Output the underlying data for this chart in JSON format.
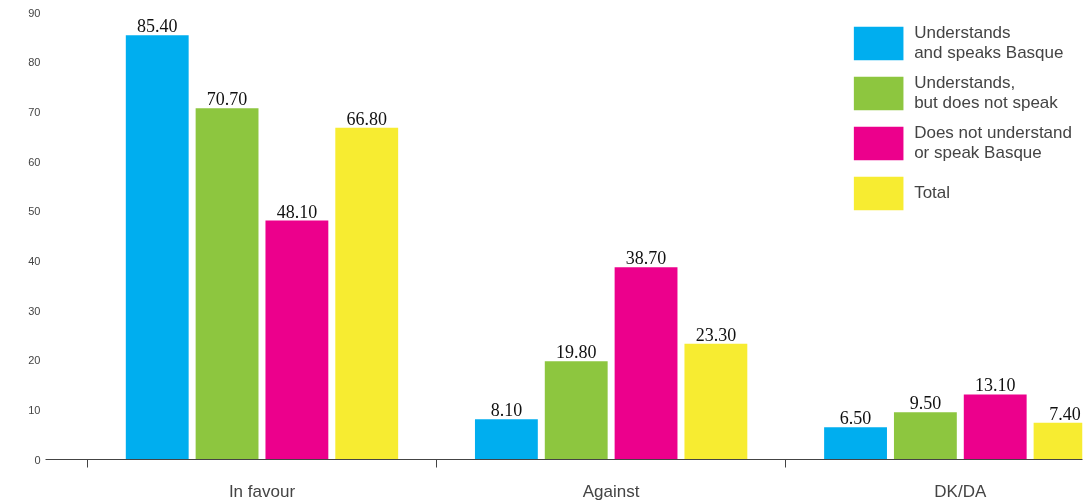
{
  "chart_data": {
    "type": "bar",
    "categories": [
      "In favour",
      "Against",
      "DK/DA"
    ],
    "series": [
      {
        "name": "Understands\nand speaks Basque",
        "color": "#00aeef",
        "values": [
          85.4,
          8.1,
          6.5
        ],
        "value_labels": [
          "85.40",
          "8.10",
          "6.50"
        ]
      },
      {
        "name": "Understands,\nbut does not speak",
        "color": "#8dc63f",
        "values": [
          70.7,
          19.8,
          9.5
        ],
        "value_labels": [
          "70.70",
          "19.80",
          "9.50"
        ]
      },
      {
        "name": "Does not understand\nor speak Basque",
        "color": "#ec008c",
        "values": [
          48.1,
          38.7,
          13.1
        ],
        "value_labels": [
          "48.10",
          "38.70",
          "13.10"
        ]
      },
      {
        "name": "Total",
        "color": "#f7ec31",
        "values": [
          66.8,
          23.3,
          7.4
        ],
        "value_labels": [
          "66.80",
          "23.30",
          "7.40"
        ]
      }
    ],
    "ylim": [
      0,
      90
    ],
    "yticks": [
      0,
      10,
      20,
      30,
      40,
      50,
      60,
      70,
      80,
      90
    ],
    "grid": false,
    "legend": "top right"
  }
}
